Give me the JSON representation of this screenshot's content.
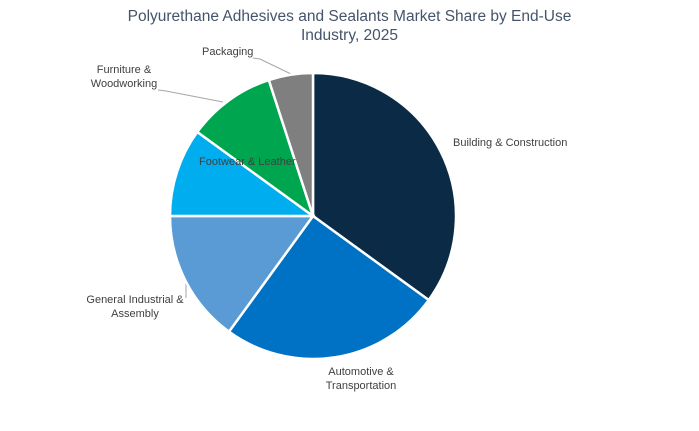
{
  "title_display": "Polyurethane Adhesives and Sealants Market Share by End-Use\nIndustry, 2025",
  "colors": {
    "background": "#FFFFFF",
    "title_text": "#44546A",
    "label_text": "#404040",
    "leader_line": "#A6A6A6",
    "slice_border": "#FFFFFF"
  },
  "chart_data": {
    "type": "pie",
    "title": "Polyurethane Adhesives and Sealants Market Share by End-Use Industry, 2025",
    "start_angle_deg": 0,
    "direction": "clockwise",
    "legend": "none",
    "labels": "outside-callout",
    "slices": [
      {
        "id": "building-construction",
        "label": "Building & Construction",
        "value_pct": 35,
        "color": "#0B2A45"
      },
      {
        "id": "automotive-transportation",
        "label": "Automotive & Transportation",
        "value_pct": 25,
        "color": "#0072C5"
      },
      {
        "id": "general-industrial-assembly",
        "label": "General Industrial & Assembly",
        "value_pct": 15,
        "color": "#5B9BD5"
      },
      {
        "id": "footwear-leather",
        "label": "Footwear & Leather",
        "value_pct": 10,
        "color": "#00AEEF"
      },
      {
        "id": "furniture-woodworking",
        "label": "Furniture & Woodworking",
        "value_pct": 10,
        "color": "#00A64F"
      },
      {
        "id": "packaging",
        "label": "Packaging",
        "value_pct": 5,
        "color": "#7F7F7F"
      }
    ],
    "labels_display": {
      "building": "Building & Construction",
      "automotive": "Automotive &\nTransportation",
      "general": "General Industrial &\nAssembly",
      "footwear": "Footwear & Leather",
      "furniture": "Furniture &\nWoodworking",
      "packaging": "Packaging"
    }
  }
}
